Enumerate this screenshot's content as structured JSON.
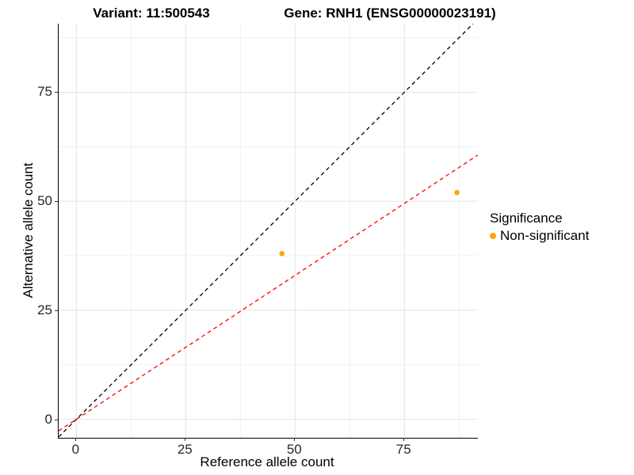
{
  "titles": {
    "left": "Variant: 11:500543",
    "right": "Gene: RNH1 (ENSG00000023191)"
  },
  "axes": {
    "x": {
      "label": "Reference allele count"
    },
    "y": {
      "label": "Alternative allele count"
    }
  },
  "legend": {
    "title": "Significance",
    "items": [
      {
        "label": "Non-significant",
        "color": "#FFA500",
        "marker": "circle-icon"
      }
    ]
  },
  "chart_data": {
    "type": "scatter",
    "title": "Variant: 11:500543 — Gene: RNH1 (ENSG00000023191)",
    "xlabel": "Reference allele count",
    "ylabel": "Alternative allele count",
    "xlim": [
      -4.05,
      91.8
    ],
    "ylim": [
      -4.25,
      90.7
    ],
    "x_ticks": [
      0,
      25,
      50,
      75
    ],
    "y_ticks": [
      0,
      25,
      50,
      75
    ],
    "x_minor": [
      12.5,
      37.5,
      62.5,
      87.5
    ],
    "y_minor": [
      12.5,
      37.5,
      62.5,
      87.5
    ],
    "points": [
      {
        "x": 47,
        "y": 38,
        "series": "Non-significant"
      },
      {
        "x": 87,
        "y": 52,
        "series": "Non-significant"
      }
    ],
    "point_color": "#FFA500",
    "lines": [
      {
        "name": "identity-line",
        "slope": 1,
        "intercept": 0,
        "color": "#000000",
        "dash": "5,4"
      },
      {
        "name": "allelic-ratio-line",
        "slope": 0.66,
        "intercept": 0,
        "color": "#FF0000",
        "dash": "5,4"
      }
    ],
    "grid": {
      "major_color": "#E4E4E4",
      "minor_color": "#F1F1F1"
    },
    "legend_position": "right"
  }
}
